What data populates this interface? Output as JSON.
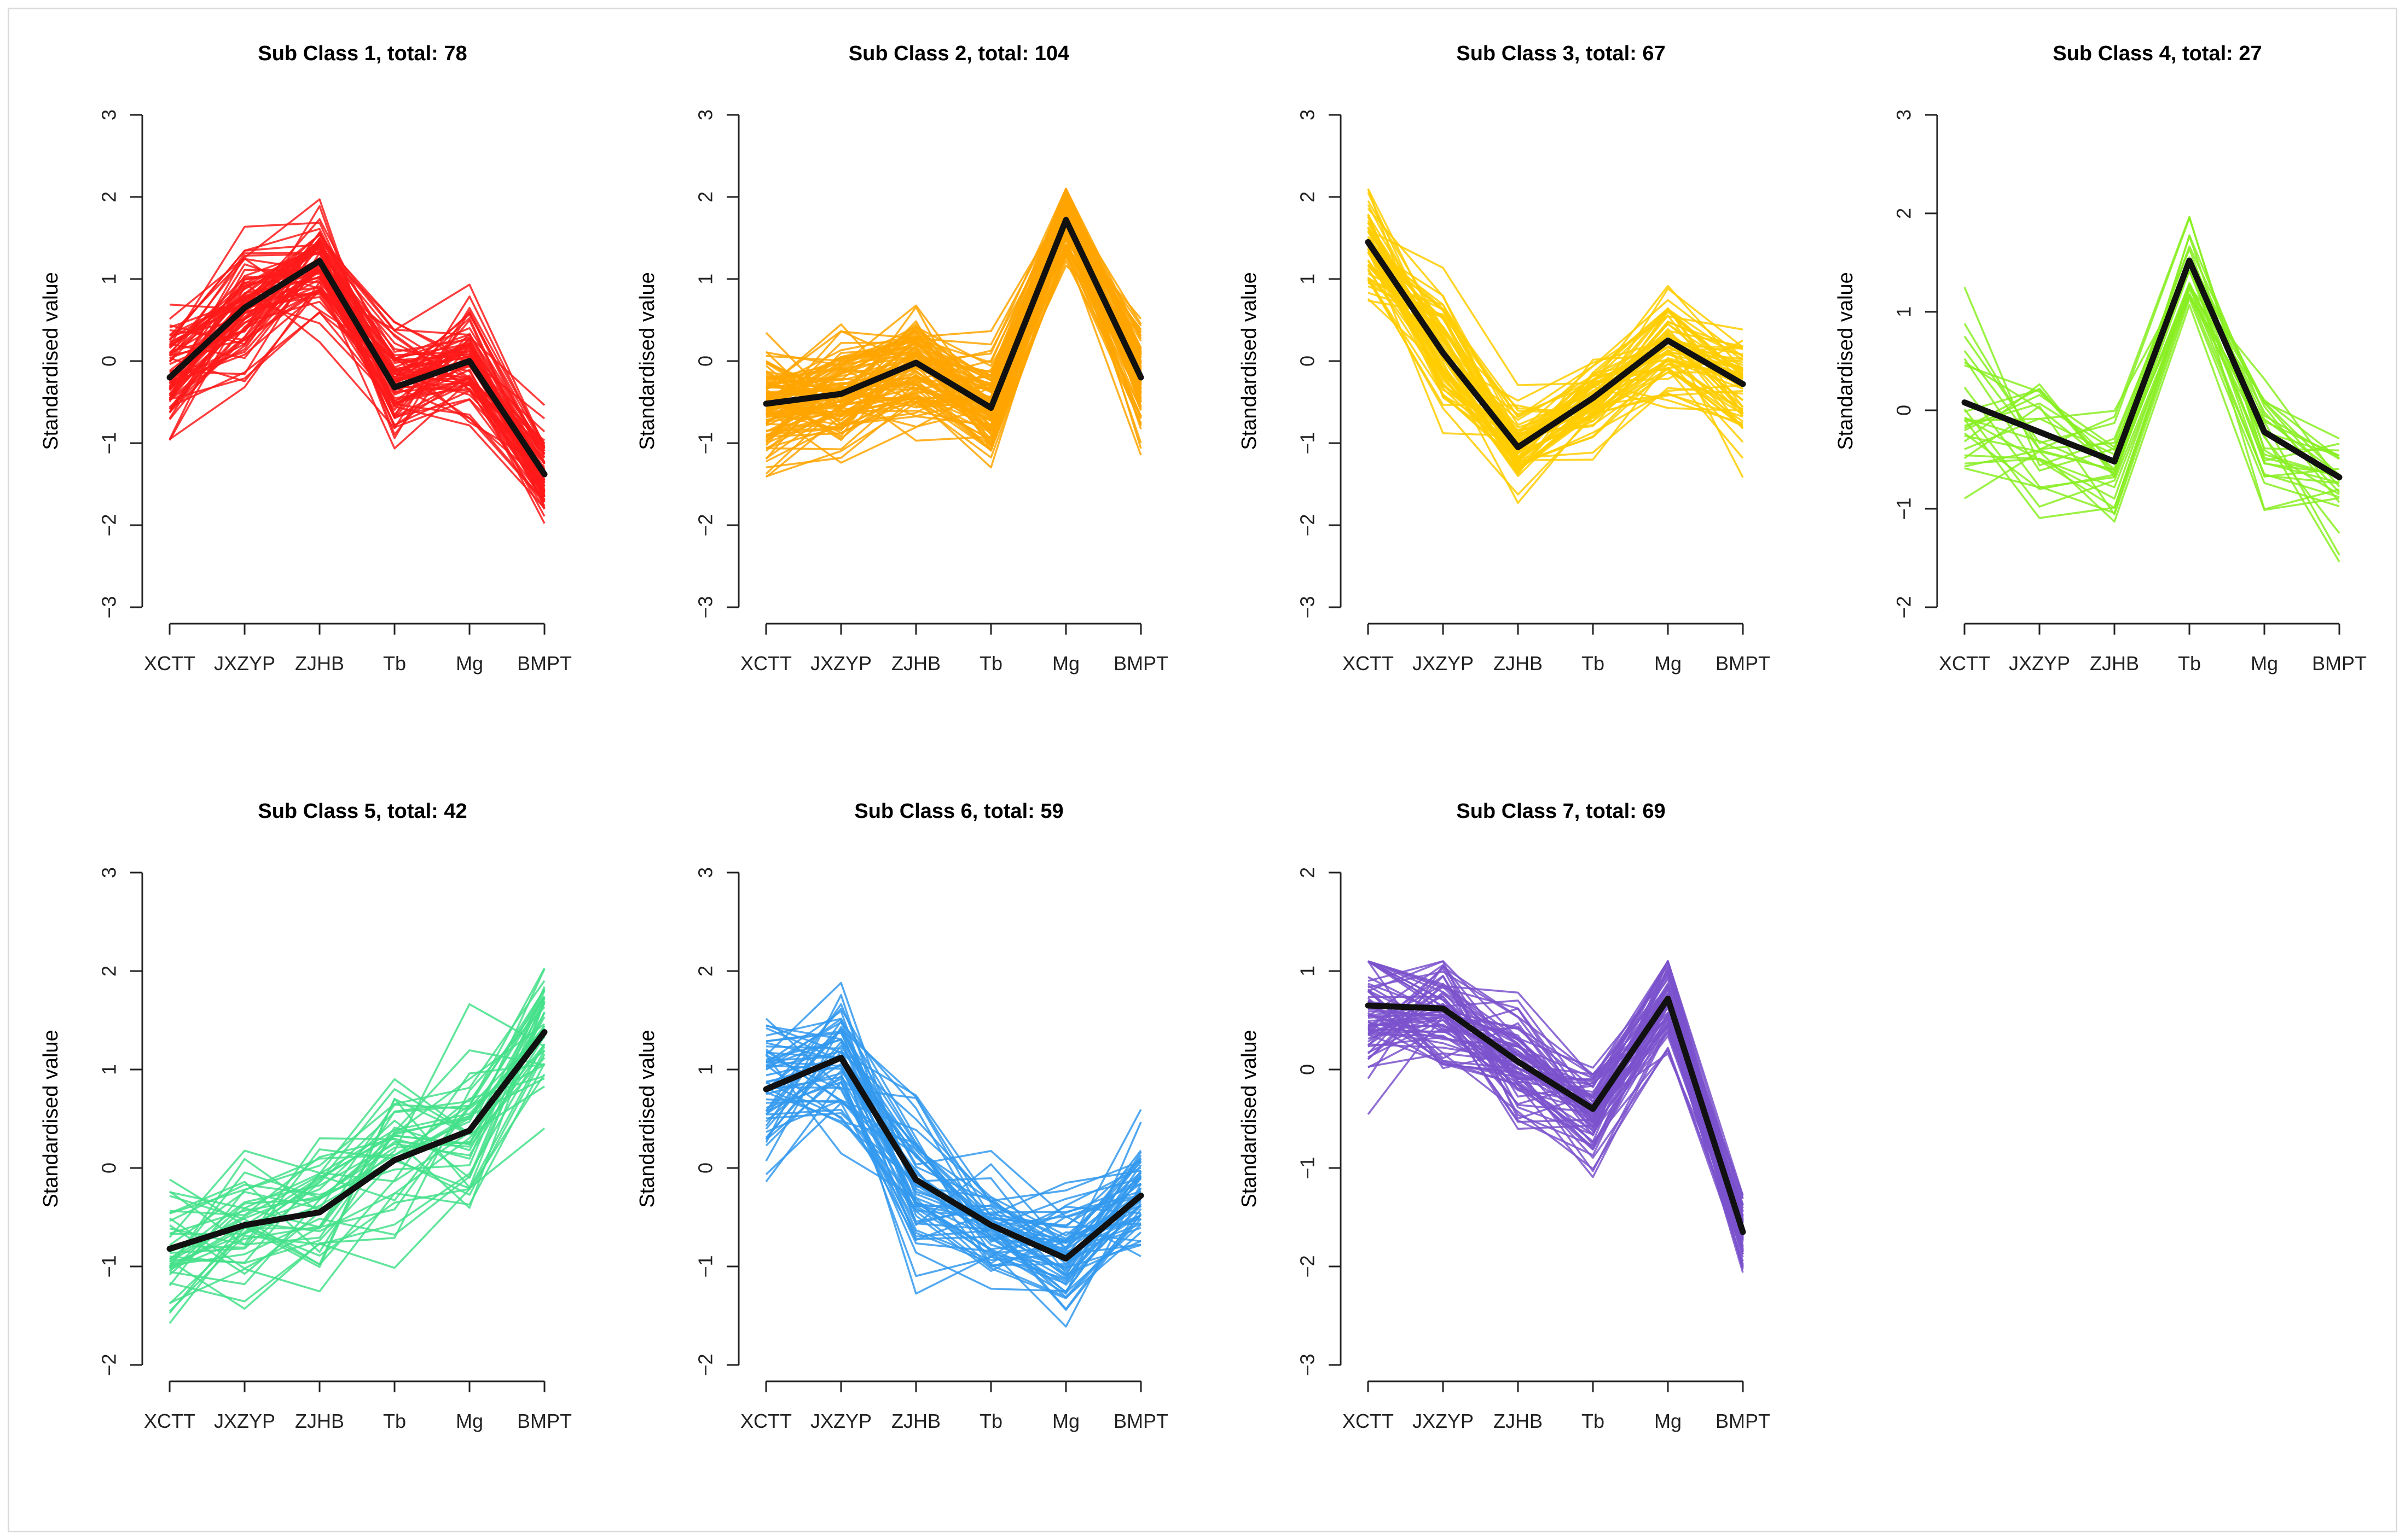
{
  "chart_data": [
    {
      "type": "line",
      "title": "Sub Class 1, total: 78",
      "xlabel": "",
      "ylabel": "Standardised value",
      "categories": [
        "XCTT",
        "JXZYP",
        "ZJHB",
        "Tb",
        "Mg",
        "BMPT"
      ],
      "y_ticks": [
        -3,
        -2,
        -1,
        0,
        1,
        2,
        3
      ],
      "ylim": [
        -3,
        3
      ],
      "color": "#ff1a1a",
      "total": 78,
      "mean": [
        -0.2,
        0.65,
        1.22,
        -0.32,
        0.0,
        -1.38
      ],
      "spread": [
        0.45,
        0.45,
        0.35,
        0.4,
        0.4,
        0.3
      ]
    },
    {
      "type": "line",
      "title": "Sub Class 2, total: 104",
      "xlabel": "",
      "ylabel": "Standardised value",
      "categories": [
        "XCTT",
        "JXZYP",
        "ZJHB",
        "Tb",
        "Mg",
        "BMPT"
      ],
      "y_ticks": [
        -3,
        -2,
        -1,
        0,
        1,
        2,
        3
      ],
      "ylim": [
        -3,
        3
      ],
      "color": "#ffa500",
      "total": 104,
      "mean": [
        -0.52,
        -0.4,
        -0.02,
        -0.57,
        1.72,
        -0.2
      ],
      "spread": [
        0.45,
        0.4,
        0.4,
        0.35,
        0.25,
        0.35
      ]
    },
    {
      "type": "line",
      "title": "Sub Class 3, total: 67",
      "xlabel": "",
      "ylabel": "Standardised value",
      "categories": [
        "XCTT",
        "JXZYP",
        "ZJHB",
        "Tb",
        "Mg",
        "BMPT"
      ],
      "y_ticks": [
        -3,
        -2,
        -1,
        0,
        1,
        2,
        3
      ],
      "ylim": [
        -3,
        3
      ],
      "color": "#ffcc00",
      "total": 67,
      "mean": [
        1.45,
        0.1,
        -1.05,
        -0.45,
        0.25,
        -0.28
      ],
      "spread": [
        0.35,
        0.4,
        0.3,
        0.35,
        0.4,
        0.35
      ]
    },
    {
      "type": "line",
      "title": "Sub Class 4, total: 27",
      "xlabel": "",
      "ylabel": "Standardised value",
      "categories": [
        "XCTT",
        "JXZYP",
        "ZJHB",
        "Tb",
        "Mg",
        "BMPT"
      ],
      "y_ticks": [
        -2,
        -1,
        0,
        1,
        2,
        3
      ],
      "ylim": [
        -2,
        3
      ],
      "color": "#88ee22",
      "total": 27,
      "mean": [
        0.08,
        -0.22,
        -0.52,
        1.52,
        -0.22,
        -0.68
      ],
      "spread": [
        0.55,
        0.4,
        0.3,
        0.25,
        0.45,
        0.4
      ]
    },
    {
      "type": "line",
      "title": "Sub Class 5, total: 42",
      "xlabel": "",
      "ylabel": "Standardised value",
      "categories": [
        "XCTT",
        "JXZYP",
        "ZJHB",
        "Tb",
        "Mg",
        "BMPT"
      ],
      "y_ticks": [
        -2,
        -1,
        0,
        1,
        2,
        3
      ],
      "ylim": [
        -2,
        3
      ],
      "color": "#44e08a",
      "total": 42,
      "mean": [
        -0.82,
        -0.58,
        -0.45,
        0.08,
        0.38,
        1.38
      ],
      "spread": [
        0.4,
        0.45,
        0.5,
        0.5,
        0.5,
        0.35
      ]
    },
    {
      "type": "line",
      "title": "Sub Class 6, total: 59",
      "xlabel": "",
      "ylabel": "Standardised value",
      "categories": [
        "XCTT",
        "JXZYP",
        "ZJHB",
        "Tb",
        "Mg",
        "BMPT"
      ],
      "y_ticks": [
        -2,
        -1,
        0,
        1,
        2,
        3
      ],
      "ylim": [
        -2,
        3
      ],
      "color": "#3399ee",
      "total": 59,
      "mean": [
        0.8,
        1.12,
        -0.12,
        -0.58,
        -0.92,
        -0.28
      ],
      "spread": [
        0.45,
        0.4,
        0.45,
        0.35,
        0.35,
        0.4
      ]
    },
    {
      "type": "line",
      "title": "Sub Class 7, total: 69",
      "xlabel": "",
      "ylabel": "Standardised value",
      "categories": [
        "XCTT",
        "JXZYP",
        "ZJHB",
        "Tb",
        "Mg",
        "BMPT"
      ],
      "y_ticks": [
        -3,
        -2,
        -1,
        0,
        1,
        2
      ],
      "ylim": [
        -3,
        2
      ],
      "color": "#7b52cc",
      "total": 69,
      "mean": [
        0.65,
        0.62,
        0.08,
        -0.4,
        0.72,
        -1.65
      ],
      "spread": [
        0.35,
        0.35,
        0.3,
        0.25,
        0.35,
        0.2
      ]
    }
  ]
}
